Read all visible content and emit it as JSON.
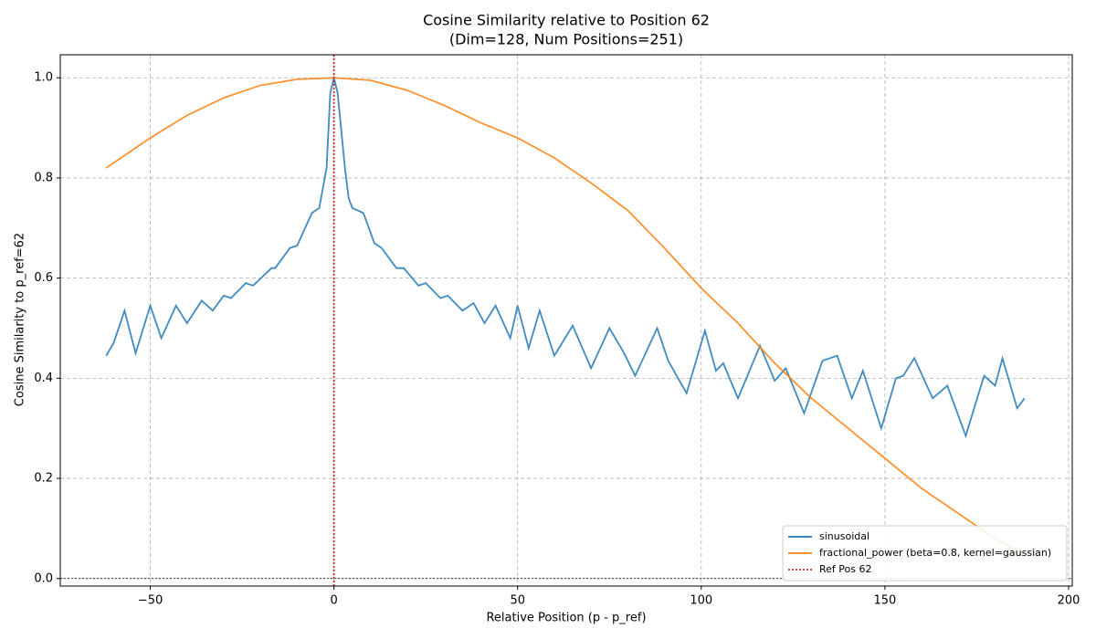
{
  "chart_data": {
    "type": "line",
    "title": "Cosine Similarity relative to Position 62",
    "subtitle": "(Dim=128, Num Positions=251)",
    "xlabel": "Relative Position (p - p_ref)",
    "ylabel": "Cosine Similarity to p_ref=62",
    "xlim": [
      -74.5,
      201
    ],
    "ylim": [
      -0.015,
      1.046
    ],
    "xticks": [
      {
        "value": -50,
        "label": "−50"
      },
      0,
      50,
      100,
      150,
      200
    ],
    "yticks": [
      {
        "value": 0,
        "label": "0.0"
      },
      0.2,
      0.4,
      0.6,
      0.8,
      {
        "value": 1,
        "label": "1.0"
      }
    ],
    "grid": true,
    "legend": "lower right",
    "series": [
      {
        "name": "sinusoidal",
        "color": "#1f77b4",
        "x": [
          -62,
          -60,
          -57,
          -54,
          -50,
          -47,
          -43,
          -40,
          -36,
          -33,
          -30,
          -28,
          -24,
          -22,
          -17,
          -16,
          -12,
          -10,
          -6,
          -4,
          -2,
          -1,
          0,
          1,
          3,
          4,
          5,
          8,
          11,
          13,
          17,
          19,
          23,
          25,
          29,
          31,
          35,
          38,
          41,
          44,
          48,
          50,
          53,
          56,
          60,
          65,
          70,
          75,
          79,
          82,
          88,
          91,
          96,
          101,
          104,
          106,
          110,
          116,
          120,
          123,
          128,
          133,
          137,
          141,
          144,
          149,
          153,
          155,
          158,
          163,
          167,
          172,
          177,
          180,
          182,
          186,
          188
        ],
        "values": [
          0.445,
          0.47,
          0.535,
          0.45,
          0.545,
          0.48,
          0.545,
          0.51,
          0.555,
          0.535,
          0.565,
          0.56,
          0.59,
          0.585,
          0.62,
          0.62,
          0.66,
          0.665,
          0.73,
          0.74,
          0.82,
          0.97,
          1.0,
          0.97,
          0.82,
          0.76,
          0.74,
          0.73,
          0.67,
          0.66,
          0.62,
          0.62,
          0.585,
          0.59,
          0.56,
          0.565,
          0.535,
          0.55,
          0.51,
          0.545,
          0.48,
          0.545,
          0.46,
          0.535,
          0.445,
          0.505,
          0.42,
          0.5,
          0.45,
          0.405,
          0.5,
          0.435,
          0.37,
          0.495,
          0.415,
          0.43,
          0.36,
          0.465,
          0.395,
          0.42,
          0.33,
          0.435,
          0.445,
          0.36,
          0.415,
          0.3,
          0.4,
          0.405,
          0.44,
          0.36,
          0.385,
          0.285,
          0.405,
          0.385,
          0.44,
          0.34,
          0.36
        ]
      },
      {
        "name": "fractional_power (beta=0.8, kernel=gaussian)",
        "color": "#ff7f0e",
        "x": [
          -62,
          -50,
          -40,
          -30,
          -20,
          -10,
          0,
          10,
          20,
          30,
          40,
          50,
          60,
          70,
          80,
          90,
          100,
          110,
          120,
          130,
          140,
          150,
          160,
          170,
          180,
          188
        ],
        "values": [
          0.82,
          0.88,
          0.925,
          0.96,
          0.985,
          0.997,
          1.0,
          0.995,
          0.975,
          0.945,
          0.91,
          0.88,
          0.84,
          0.79,
          0.735,
          0.66,
          0.58,
          0.51,
          0.43,
          0.36,
          0.3,
          0.24,
          0.18,
          0.13,
          0.08,
          0.05
        ]
      }
    ],
    "reference_line": {
      "name": "Ref Pos 62",
      "x": 0,
      "color": "#d62728"
    },
    "hline": {
      "y": 0,
      "color": "#000000"
    }
  }
}
